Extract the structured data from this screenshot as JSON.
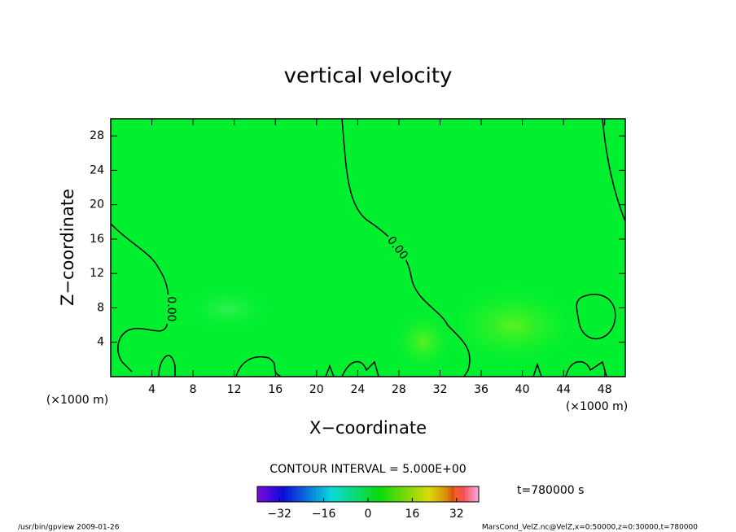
{
  "chart_data": {
    "type": "contour",
    "title": "vertical velocity",
    "x_label": "X−coordinate",
    "y_label": "Z−coordinate",
    "x_unit": "(×1000 m)",
    "y_unit": "(×1000 m)",
    "xlim": [
      0,
      50
    ],
    "xticks": [
      4,
      8,
      12,
      16,
      20,
      24,
      28,
      32,
      36,
      40,
      44,
      48
    ],
    "ylim": [
      0,
      30
    ],
    "yticks": [
      4,
      8,
      12,
      16,
      20,
      24,
      28
    ],
    "contour_level": {
      "value": 0,
      "label": "0.00"
    },
    "contour_interval_text": "CONTOUR INTERVAL = 5.000E+00",
    "time_text": "t=780000 s",
    "clim": [
      -40,
      40
    ],
    "colorbar_ticks": [
      {
        "value": -32,
        "label": "−32"
      },
      {
        "value": -16,
        "label": "−16"
      },
      0,
      16,
      32
    ],
    "footer_left": "/usr/bin/gpview   2009-01-26",
    "footer_right": "MarsCond_VelZ.nc@VelZ,x=0:50000,z=0:30000,t=780000"
  }
}
